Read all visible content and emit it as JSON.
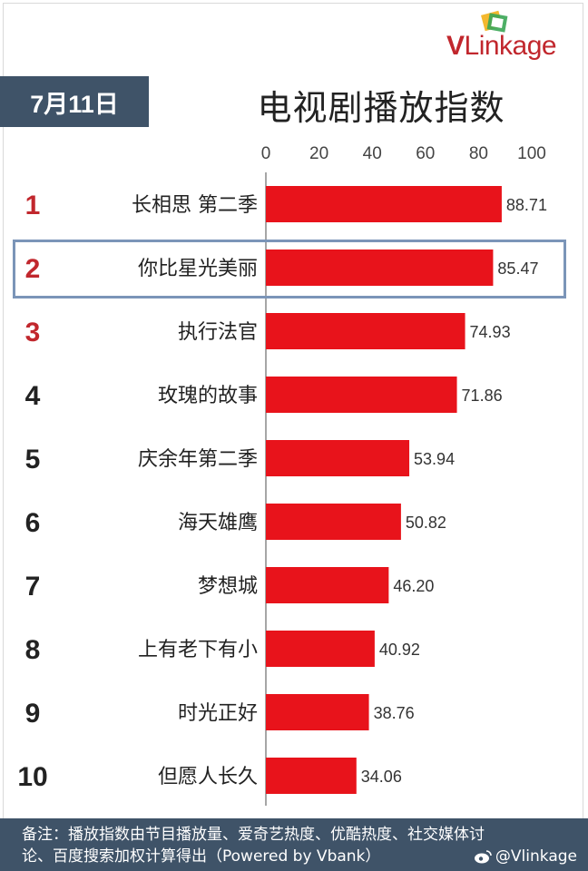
{
  "header": {
    "date": "7月11日",
    "title": "电视剧播放指数"
  },
  "logo": {
    "v": "V",
    "rest": "Linkage"
  },
  "chart_data": {
    "type": "bar",
    "orientation": "horizontal",
    "title": "电视剧播放指数",
    "xlim": [
      0,
      100
    ],
    "ticks": [
      0,
      20,
      40,
      60,
      80,
      100
    ],
    "ranks": [
      "1",
      "2",
      "3",
      "4",
      "5",
      "6",
      "7",
      "8",
      "9",
      "10"
    ],
    "categories": [
      "长相思 第二季",
      "你比星光美丽",
      "执行法官",
      "玫瑰的故事",
      "庆余年第二季",
      "海天雄鹰",
      "梦想城",
      "上有老下有小",
      "时光正好",
      "但愿人长久"
    ],
    "values": [
      88.71,
      85.47,
      74.93,
      71.86,
      53.94,
      50.82,
      46.2,
      40.92,
      38.76,
      34.06
    ],
    "value_labels": [
      "88.71",
      "85.47",
      "74.93",
      "71.86",
      "53.94",
      "50.82",
      "46.20",
      "40.92",
      "38.76",
      "34.06"
    ],
    "highlighted_rank": 2,
    "bar_color": "#e8131b",
    "top_rank_color": "#c1272d",
    "rank_color": "#222222",
    "grid": false
  },
  "footer": {
    "line1": "备注：播放指数由节目播放量、爱奇艺热度、优酷热度、社交媒体讨",
    "line2": "论、百度搜索加权计算得出（Powered by Vbank）",
    "weibo_handle": "@Vlinkage"
  }
}
